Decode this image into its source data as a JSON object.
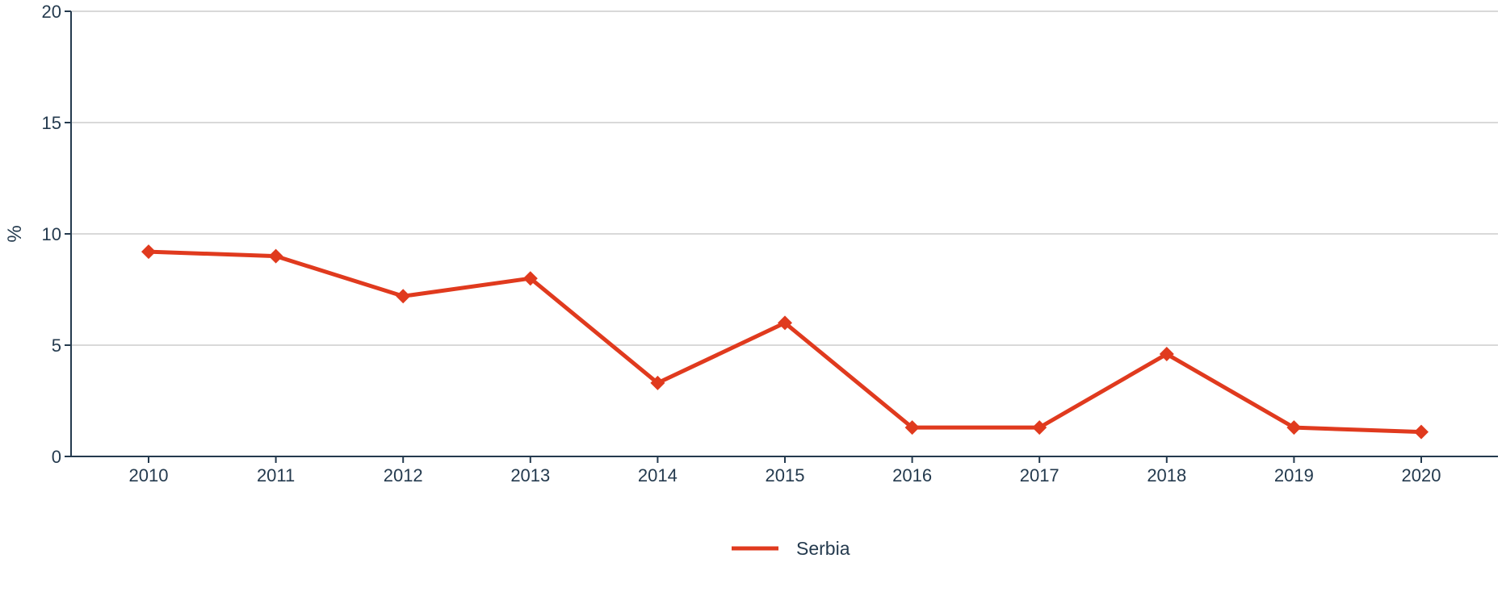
{
  "chart_data": {
    "type": "line",
    "title": "",
    "xlabel": "",
    "ylabel": "%",
    "ylim": [
      0,
      20
    ],
    "yticks": [
      0,
      5,
      10,
      15,
      20
    ],
    "grid": "horizontal",
    "legend_position": "bottom-center",
    "x": [
      "2010",
      "2011",
      "2012",
      "2013",
      "2014",
      "2015",
      "2016",
      "2017",
      "2018",
      "2019",
      "2020"
    ],
    "series": [
      {
        "name": "Serbia",
        "color": "#e03a1e",
        "marker": "diamond",
        "values": [
          9.2,
          9.0,
          7.2,
          8.0,
          3.3,
          6.0,
          1.3,
          1.3,
          4.6,
          1.3,
          1.1
        ]
      }
    ]
  }
}
